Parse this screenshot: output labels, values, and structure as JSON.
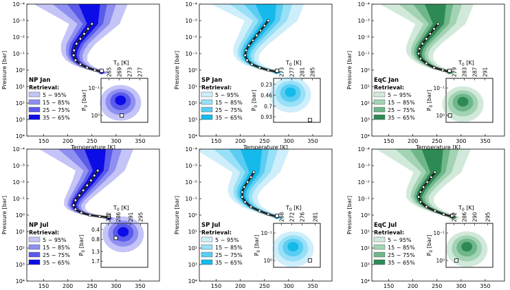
{
  "figure": {
    "xlabel": "Temperature [K]",
    "ylabel": "Pressure [bar]",
    "inset_ylabel": "P",
    "inset_ylabel_sub": "0",
    "inset_ylabel_unit": " [bar]",
    "inset_xlabel": "T",
    "inset_xlabel_sub": "0",
    "inset_xlabel_unit": " [K]",
    "legend_title": "Retrieval:",
    "bands": [
      "5 − 95%",
      "15 − 85%",
      "25 − 75%",
      "35 − 65%"
    ]
  },
  "chart_data": [
    {
      "type": "area",
      "panel": "NP Jan",
      "colors": [
        "#c4c4f8",
        "#8f8ff2",
        "#5a5aeb",
        "#0c0ce6"
      ],
      "xlim": [
        115,
        390
      ],
      "xticks": [
        150,
        200,
        250,
        300,
        350
      ],
      "ylim_bar": [
        0.0001,
        10000.0
      ],
      "yscale": "log",
      "yticks": [
        "10⁻⁴",
        "10⁻³",
        "10⁻²",
        "10⁻¹",
        "10⁰",
        "10¹",
        "10²",
        "10³",
        "10⁴"
      ],
      "profile_T": [
        250,
        242,
        234,
        226,
        218,
        213,
        212,
        216,
        226,
        240,
        256,
        270
      ],
      "profile_logP": [
        -2.8,
        -2.5,
        -2.2,
        -1.9,
        -1.6,
        -1.2,
        -0.9,
        -0.6,
        -0.35,
        -0.15,
        0.0,
        0.1
      ],
      "marker": {
        "T": 270,
        "P": 1.1
      },
      "inset": {
        "t0_ticks": [
          "265",
          "269",
          "273",
          "277"
        ],
        "t0_range": [
          262,
          280
        ],
        "p0_ticks": [
          "10⁻¹",
          "10⁰"
        ],
        "p0_range_log": [
          -1.35,
          0.25
        ],
        "p0_tick_values_log": [
          -1,
          0
        ],
        "contour_center": {
          "t0": 269.5,
          "p0_log": -0.55
        },
        "truth": {
          "t0": 270,
          "p0_log": 0.0
        }
      }
    },
    {
      "type": "area",
      "panel": "SP Jan",
      "colors": [
        "#cdeefa",
        "#97e0f7",
        "#5bcdf2",
        "#16baea"
      ],
      "xlim": [
        115,
        390
      ],
      "xticks": [
        150,
        200,
        250,
        300,
        350
      ],
      "ylim_bar": [
        0.0001,
        10000.0
      ],
      "yscale": "log",
      "yticks": [
        "10⁻⁴",
        "10⁻³",
        "10⁻²",
        "10⁻¹",
        "10⁰",
        "10¹",
        "10²",
        "10³",
        "10⁴"
      ],
      "profile_T": [
        258,
        250,
        242,
        234,
        226,
        218,
        212,
        210,
        214,
        224,
        240,
        258,
        275
      ],
      "profile_logP": [
        -3.0,
        -2.7,
        -2.4,
        -2.1,
        -1.8,
        -1.5,
        -1.2,
        -0.9,
        -0.6,
        -0.35,
        -0.15,
        0.0,
        0.1
      ],
      "marker": {
        "T": 276,
        "P": 1.1
      },
      "inset": {
        "t0_ticks": [
          "273",
          "277",
          "281",
          "285"
        ],
        "t0_range": [
          270,
          288
        ],
        "p0_ticks": [
          "0.23",
          "0.46",
          "0.7",
          "0.93"
        ],
        "p0_range_lin": [
          0.1,
          1.05
        ],
        "p0_tick_values_lin": [
          0.23,
          0.46,
          0.7,
          0.93
        ],
        "contour_center": {
          "t0": 276.5,
          "p0": 0.4
        },
        "truth": {
          "t0": 284,
          "p0": 1.0
        }
      }
    },
    {
      "type": "area",
      "panel": "EqC Jan",
      "colors": [
        "#d1e9da",
        "#a2d3b3",
        "#6fb78b",
        "#2e8a55"
      ],
      "xlim": [
        115,
        390
      ],
      "xticks": [
        150,
        200,
        250,
        300,
        350
      ],
      "ylim_bar": [
        0.0001,
        10000.0
      ],
      "yscale": "log",
      "yticks": [
        "10⁻⁴",
        "10⁻³",
        "10⁻²",
        "10⁻¹",
        "10⁰",
        "10¹",
        "10²",
        "10³",
        "10⁴"
      ],
      "profile_T": [
        252,
        244,
        236,
        228,
        220,
        214,
        212,
        216,
        228,
        244,
        262,
        276
      ],
      "profile_logP": [
        -2.8,
        -2.5,
        -2.2,
        -1.9,
        -1.6,
        -1.3,
        -1.0,
        -0.7,
        -0.4,
        -0.15,
        0.0,
        0.1
      ],
      "marker": {
        "T": 276,
        "P": 1.1
      },
      "inset": {
        "t0_ticks": [
          "279",
          "283",
          "287",
          "291"
        ],
        "t0_range": [
          276,
          294
        ],
        "p0_ticks": [
          "10⁻¹",
          "10⁰"
        ],
        "p0_range_log": [
          -1.35,
          0.25
        ],
        "p0_tick_values_log": [
          -1,
          0
        ],
        "contour_center": {
          "t0": 282.5,
          "p0_log": -0.5
        },
        "truth": {
          "t0": 277.5,
          "p0_log": 0.0
        }
      }
    },
    {
      "type": "area",
      "panel": "NP Jul",
      "colors": [
        "#c4c4f8",
        "#8f8ff2",
        "#5a5aeb",
        "#0c0ce6"
      ],
      "xlim": [
        115,
        390
      ],
      "xticks": [
        150,
        200,
        250,
        300,
        350
      ],
      "ylim_bar": [
        0.0001,
        10000.0
      ],
      "yscale": "log",
      "yticks": [
        "10⁻⁴",
        "10⁻³",
        "10⁻²",
        "10⁻¹",
        "10⁰",
        "10¹",
        "10²",
        "10³",
        "10⁴"
      ],
      "profile_T": [
        262,
        255,
        248,
        240,
        232,
        224,
        216,
        212,
        216,
        228,
        246,
        266,
        285
      ],
      "profile_logP": [
        -2.7,
        -2.4,
        -2.1,
        -1.8,
        -1.5,
        -1.2,
        -0.9,
        -0.6,
        -0.35,
        -0.15,
        0.0,
        0.08,
        0.15
      ],
      "marker": {
        "T": 285,
        "P": 1.2
      },
      "inset": {
        "t0_ticks": [
          "282",
          "286",
          "291",
          "295"
        ],
        "t0_range": [
          279,
          298
        ],
        "p0_ticks": [
          "0.4",
          "0.8",
          "1.3",
          "1.7"
        ],
        "p0_range_lin": [
          0.15,
          1.95
        ],
        "p0_tick_values_lin": [
          0.4,
          0.8,
          1.3,
          1.7
        ],
        "contour_center": {
          "t0": 288,
          "p0": 0.5
        },
        "truth": {
          "t0": 285,
          "p0": 0.75
        }
      }
    },
    {
      "type": "area",
      "panel": "SP Jul",
      "colors": [
        "#cdeefa",
        "#97e0f7",
        "#5bcdf2",
        "#16baea"
      ],
      "xlim": [
        115,
        390
      ],
      "xticks": [
        150,
        200,
        250,
        300,
        350
      ],
      "ylim_bar": [
        0.0001,
        10000.0
      ],
      "yscale": "log",
      "yticks": [
        "10⁻⁴",
        "10⁻³",
        "10⁻²",
        "10⁻¹",
        "10⁰",
        "10¹",
        "10²",
        "10³",
        "10⁴"
      ],
      "profile_T": [
        228,
        222,
        215,
        208,
        204,
        204,
        210,
        222,
        240,
        258,
        276
      ],
      "profile_logP": [
        -2.6,
        -2.3,
        -2.0,
        -1.7,
        -1.4,
        -1.1,
        -0.8,
        -0.5,
        -0.25,
        -0.05,
        0.1
      ],
      "marker": {
        "T": 276,
        "P": 1.1
      },
      "inset": {
        "t0_ticks": [
          "268",
          "272",
          "276",
          "281"
        ],
        "t0_range": [
          265,
          283
        ],
        "p0_ticks": [
          "10⁻¹",
          "10⁰"
        ],
        "p0_range_log": [
          -1.35,
          0.25
        ],
        "p0_tick_values_log": [
          -1,
          0
        ],
        "contour_center": {
          "t0": 272.5,
          "p0_log": -0.5
        },
        "truth": {
          "t0": 279,
          "p0_log": 0.0
        }
      }
    },
    {
      "type": "area",
      "panel": "EqC Jul",
      "colors": [
        "#d1e9da",
        "#a2d3b3",
        "#6fb78b",
        "#2e8a55"
      ],
      "xlim": [
        115,
        390
      ],
      "xticks": [
        150,
        200,
        250,
        300,
        350
      ],
      "ylim_bar": [
        0.0001,
        10000.0
      ],
      "yscale": "log",
      "yticks": [
        "10⁻⁴",
        "10⁻³",
        "10⁻²",
        "10⁻¹",
        "10⁰",
        "10¹",
        "10²",
        "10³",
        "10⁴"
      ],
      "profile_T": [
        246,
        238,
        230,
        222,
        216,
        212,
        216,
        228,
        246,
        264,
        282
      ],
      "profile_logP": [
        -2.6,
        -2.3,
        -2.0,
        -1.7,
        -1.4,
        -1.1,
        -0.8,
        -0.5,
        -0.25,
        -0.05,
        0.1
      ],
      "marker": {
        "T": 282,
        "P": 1.1
      },
      "inset": {
        "t0_ticks": [
          "282",
          "286",
          "290",
          "295"
        ],
        "t0_range": [
          279,
          297
        ],
        "p0_ticks": [
          "10⁻¹",
          "10⁰"
        ],
        "p0_range_log": [
          -1.35,
          0.25
        ],
        "p0_tick_values_log": [
          -1,
          0
        ],
        "contour_center": {
          "t0": 287,
          "p0_log": -0.5
        },
        "truth": {
          "t0": 283,
          "p0_log": 0.0
        }
      }
    }
  ]
}
